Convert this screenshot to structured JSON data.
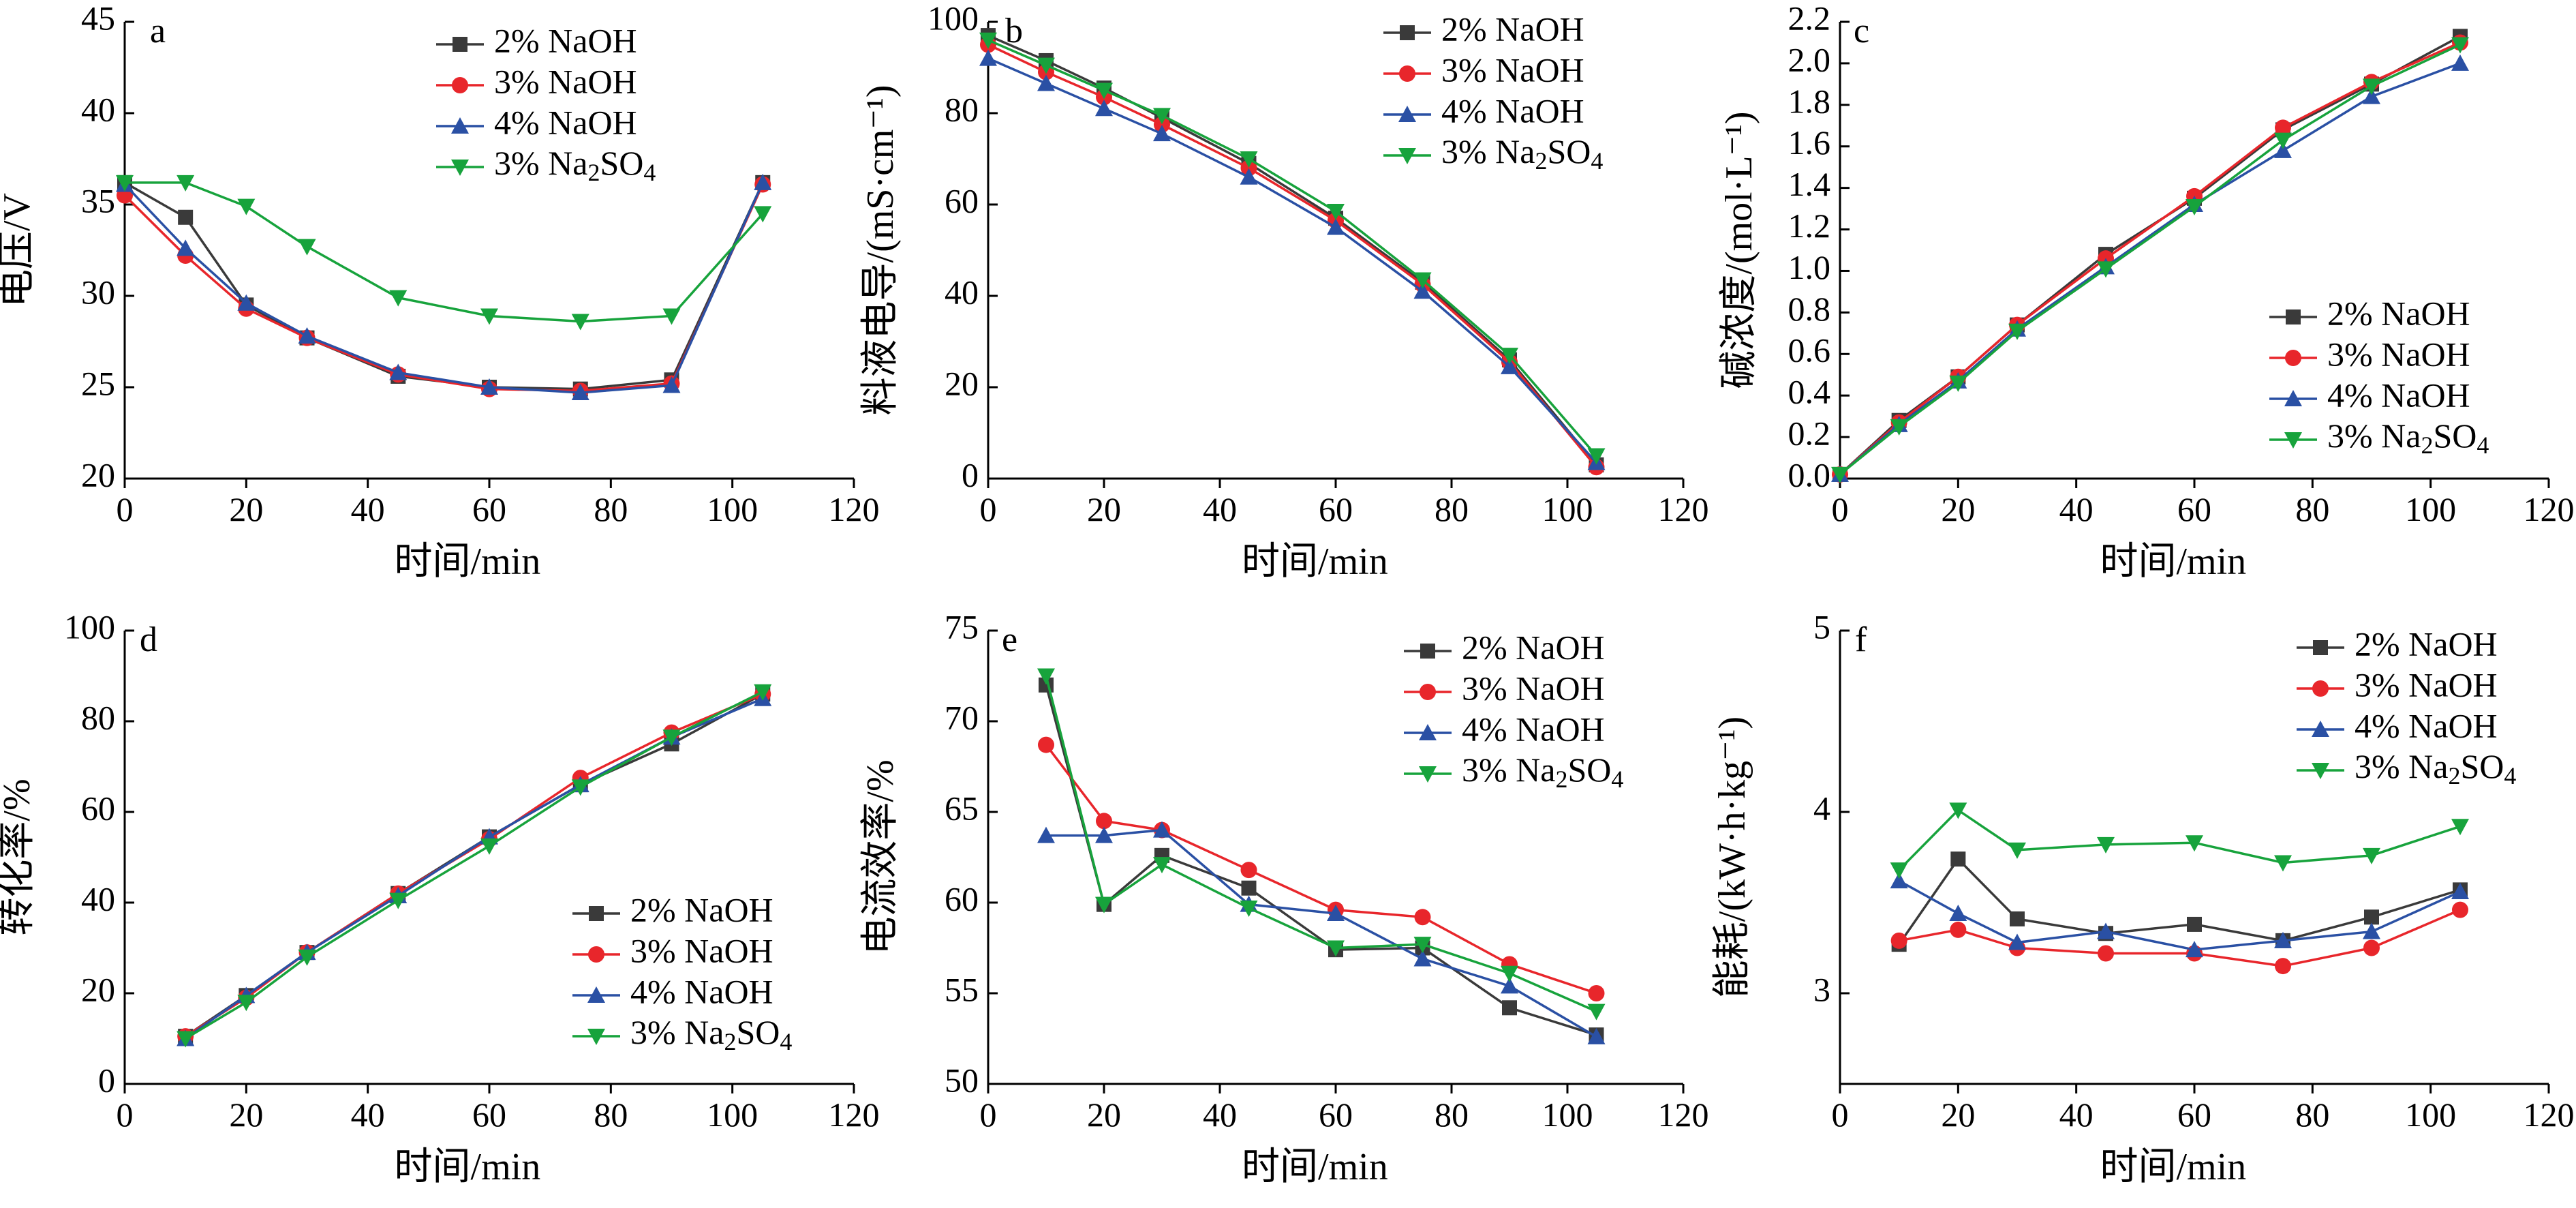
{
  "colors": {
    "2% NaOH": "#3a3a3a",
    "3% NaOH": "#e8262b",
    "4% NaOH": "#2a50a4",
    "3% Na2SO4": "#17a33c"
  },
  "markers": {
    "2% NaOH": "square",
    "3% NaOH": "circle",
    "4% NaOH": "triangle-up",
    "3% Na2SO4": "triangle-down"
  },
  "chart_data": [
    {
      "panel": "a",
      "type": "line",
      "xlabel": "时间/min",
      "ylabel": "电压/V",
      "xlim": [
        0,
        120
      ],
      "ylim": [
        20,
        45
      ],
      "xticks": [
        0,
        20,
        40,
        60,
        80,
        100,
        120
      ],
      "yticks": [
        20,
        25,
        30,
        35,
        40,
        45
      ],
      "legend": "top-right",
      "x": [
        0,
        10,
        20,
        30,
        45,
        60,
        75,
        90,
        105
      ],
      "series": [
        {
          "name": "2% NaOH",
          "values": [
            36.2,
            34.3,
            29.5,
            27.7,
            25.6,
            25.0,
            24.9,
            25.4,
            36.2
          ]
        },
        {
          "name": "3% NaOH",
          "values": [
            35.5,
            32.2,
            29.3,
            27.7,
            25.7,
            24.9,
            24.8,
            25.2,
            36.1
          ]
        },
        {
          "name": "4% NaOH",
          "values": [
            36.1,
            32.6,
            29.6,
            27.8,
            25.8,
            25.0,
            24.7,
            25.1,
            36.2
          ]
        },
        {
          "name": "3% Na2SO4",
          "values": [
            36.2,
            36.2,
            34.9,
            32.7,
            29.9,
            28.9,
            28.6,
            28.9,
            34.5
          ]
        }
      ]
    },
    {
      "panel": "b",
      "type": "line",
      "xlabel": "时间/min",
      "ylabel": "料液电导/(mS·cm⁻¹)",
      "xlim": [
        0,
        120
      ],
      "ylim": [
        0,
        100
      ],
      "xticks": [
        0,
        20,
        40,
        60,
        80,
        100,
        120
      ],
      "yticks": [
        0,
        20,
        40,
        60,
        80,
        100
      ],
      "legend": "top-right",
      "x": [
        0,
        10,
        20,
        30,
        45,
        60,
        75,
        90,
        105
      ],
      "series": [
        {
          "name": "2% NaOH",
          "values": [
            97.0,
            91.5,
            85.5,
            79.0,
            69.0,
            57.0,
            43.0,
            26.0,
            3.0
          ]
        },
        {
          "name": "3% NaOH",
          "values": [
            95.0,
            89.0,
            83.5,
            77.5,
            68.0,
            56.5,
            42.5,
            25.5,
            2.5
          ]
        },
        {
          "name": "4% NaOH",
          "values": [
            92.0,
            86.5,
            81.0,
            75.5,
            66.0,
            55.0,
            41.0,
            24.5,
            3.5
          ]
        },
        {
          "name": "3% Na2SO4",
          "values": [
            96.0,
            90.5,
            85.0,
            79.5,
            70.0,
            58.5,
            43.5,
            27.0,
            5.0
          ]
        }
      ]
    },
    {
      "panel": "c",
      "type": "line",
      "xlabel": "时间/min",
      "ylabel": "碱浓度/(mol·L⁻¹)",
      "xlim": [
        0,
        120
      ],
      "ylim": [
        0,
        2.2
      ],
      "xticks": [
        0,
        20,
        40,
        60,
        80,
        100,
        120
      ],
      "yticks": [
        0.0,
        0.2,
        0.4,
        0.6,
        0.8,
        1.0,
        1.2,
        1.4,
        1.6,
        1.8,
        2.0,
        2.2
      ],
      "ytick_labels": [
        "0.0",
        "0.2",
        "0.4",
        "0.6",
        "0.8",
        "1.0",
        "1.2",
        "1.4",
        "1.6",
        "1.8",
        "2.0",
        "2.2"
      ],
      "legend": "center-right",
      "x": [
        0,
        10,
        20,
        30,
        45,
        60,
        75,
        90,
        105
      ],
      "series": [
        {
          "name": "2% NaOH",
          "values": [
            0.02,
            0.28,
            0.49,
            0.74,
            1.08,
            1.35,
            1.68,
            1.9,
            2.13
          ]
        },
        {
          "name": "3% NaOH",
          "values": [
            0.02,
            0.27,
            0.49,
            0.74,
            1.06,
            1.36,
            1.69,
            1.91,
            2.1
          ]
        },
        {
          "name": "4% NaOH",
          "values": [
            0.02,
            0.26,
            0.47,
            0.72,
            1.02,
            1.32,
            1.58,
            1.84,
            2.0
          ]
        },
        {
          "name": "3% Na2SO4",
          "values": [
            0.02,
            0.25,
            0.46,
            0.71,
            1.01,
            1.31,
            1.63,
            1.89,
            2.09
          ]
        }
      ]
    },
    {
      "panel": "d",
      "type": "line",
      "xlabel": "时间/min",
      "ylabel": "转化率/%",
      "xlim": [
        0,
        120
      ],
      "ylim": [
        0,
        100
      ],
      "xticks": [
        0,
        20,
        40,
        60,
        80,
        100,
        120
      ],
      "yticks": [
        0,
        20,
        40,
        60,
        80,
        100
      ],
      "legend": "bottom-right",
      "x": [
        10,
        20,
        30,
        45,
        60,
        75,
        90,
        105
      ],
      "series": [
        {
          "name": "2% NaOH",
          "values": [
            10.5,
            19.5,
            29.0,
            42.0,
            54.5,
            66.0,
            75.0,
            86.0
          ]
        },
        {
          "name": "3% NaOH",
          "values": [
            10.5,
            19.0,
            29.0,
            42.0,
            54.0,
            67.5,
            77.5,
            86.0
          ]
        },
        {
          "name": "4% NaOH",
          "values": [
            10.0,
            19.5,
            29.0,
            41.5,
            54.5,
            66.0,
            76.5,
            85.0
          ]
        },
        {
          "name": "3% Na2SO4",
          "values": [
            10.0,
            18.0,
            28.0,
            40.5,
            52.5,
            65.5,
            76.5,
            86.5
          ]
        }
      ]
    },
    {
      "panel": "e",
      "type": "line",
      "xlabel": "时间/min",
      "ylabel": "电流效率/%",
      "xlim": [
        0,
        120
      ],
      "ylim": [
        50,
        75
      ],
      "xticks": [
        0,
        20,
        40,
        60,
        80,
        100,
        120
      ],
      "yticks": [
        50,
        55,
        60,
        65,
        70,
        75
      ],
      "legend": "top-right",
      "x": [
        10,
        20,
        30,
        45,
        60,
        75,
        90,
        105
      ],
      "series": [
        {
          "name": "2% NaOH",
          "values": [
            72.0,
            59.9,
            62.6,
            60.8,
            57.4,
            57.5,
            54.2,
            52.7
          ]
        },
        {
          "name": "3% NaOH",
          "values": [
            68.7,
            64.5,
            64.0,
            61.8,
            59.6,
            59.2,
            56.6,
            55.0
          ]
        },
        {
          "name": "4% NaOH",
          "values": [
            63.7,
            63.7,
            64.0,
            59.9,
            59.4,
            56.9,
            55.4,
            52.6
          ]
        },
        {
          "name": "3% Na2SO4",
          "values": [
            72.5,
            59.9,
            62.1,
            59.7,
            57.5,
            57.7,
            56.1,
            54.0
          ]
        }
      ]
    },
    {
      "panel": "f",
      "type": "line",
      "xlabel": "时间/min",
      "ylabel": "能耗/(kW·h·kg⁻¹)",
      "xlim": [
        0,
        120
      ],
      "ylim": [
        2.5,
        5
      ],
      "xticks": [
        0,
        20,
        40,
        60,
        80,
        100,
        120
      ],
      "yticks": [
        3,
        4,
        5
      ],
      "legend": "top-right",
      "x": [
        10,
        20,
        30,
        45,
        60,
        75,
        90,
        105
      ],
      "series": [
        {
          "name": "2% NaOH",
          "values": [
            3.27,
            3.74,
            3.41,
            3.33,
            3.38,
            3.29,
            3.42,
            3.57
          ]
        },
        {
          "name": "3% NaOH",
          "values": [
            3.29,
            3.35,
            3.25,
            3.22,
            3.22,
            3.15,
            3.25,
            3.46
          ]
        },
        {
          "name": "4% NaOH",
          "values": [
            3.62,
            3.44,
            3.28,
            3.34,
            3.24,
            3.29,
            3.34,
            3.56
          ]
        },
        {
          "name": "3% Na2SO4",
          "values": [
            3.68,
            4.01,
            3.79,
            3.82,
            3.83,
            3.72,
            3.76,
            3.92
          ]
        }
      ]
    }
  ]
}
